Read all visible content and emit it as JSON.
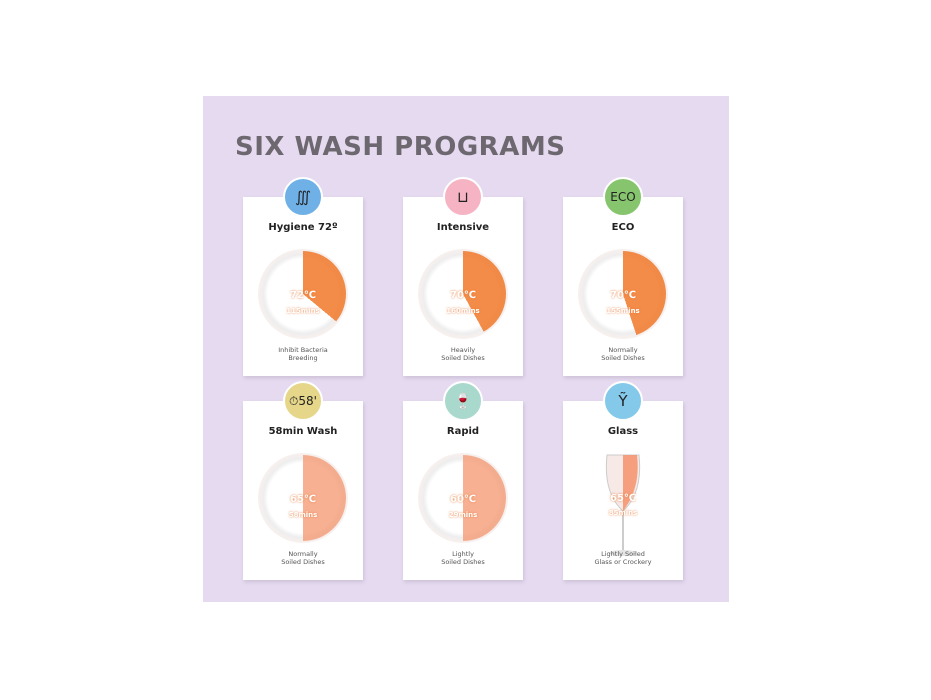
{
  "title": "SIX WASH PROGRAMS",
  "programs": [
    {
      "name": "Hygiene 72º",
      "temp": "72℃",
      "time": "115mins",
      "desc1": "Inhibit Bacteria",
      "desc2": "Breeding",
      "icon": "steam-plate-icon",
      "icon_glyph": "∭",
      "icon_color": "#6fb1e6",
      "fill": 0.36
    },
    {
      "name": "Intensive",
      "temp": "70℃",
      "time": "160mins",
      "desc1": "Heavily",
      "desc2": "Soiled Dishes",
      "icon": "pot-icon",
      "icon_glyph": "⊔",
      "icon_color": "#f6b3c4",
      "fill": 0.42
    },
    {
      "name": "ECO",
      "temp": "70℃",
      "time": "155mins",
      "desc1": "Normally",
      "desc2": "Soiled Dishes",
      "icon": "eco-icon",
      "icon_glyph": "ECO",
      "icon_color": "#86c46d",
      "fill": 0.45
    },
    {
      "name": "58min Wash",
      "temp": "65℃",
      "time": "58mins",
      "desc1": "Normally",
      "desc2": "Soiled Dishes",
      "icon": "timer-58-icon",
      "icon_glyph": "⏱58'",
      "icon_color": "#e6d68a",
      "fill": 0.5
    },
    {
      "name": "Rapid",
      "temp": "60℃",
      "time": "29mins",
      "desc1": "Lightly",
      "desc2": "Soiled Dishes",
      "icon": "glasses-icon",
      "icon_glyph": "🍷",
      "icon_color": "#a9d8cc",
      "fill": 0.5
    },
    {
      "name": "Glass",
      "temp": "65℃",
      "time": "85mins",
      "desc1": "Lightly Soiled",
      "desc2": "Glass or Crockery",
      "icon": "wine-glass-icon",
      "icon_glyph": "Ỹ",
      "icon_color": "#84c9ea",
      "fill": 0.5
    }
  ],
  "colors": {
    "background": "#e6daf1",
    "title": "#6d686f",
    "accent": "#f0883e"
  }
}
